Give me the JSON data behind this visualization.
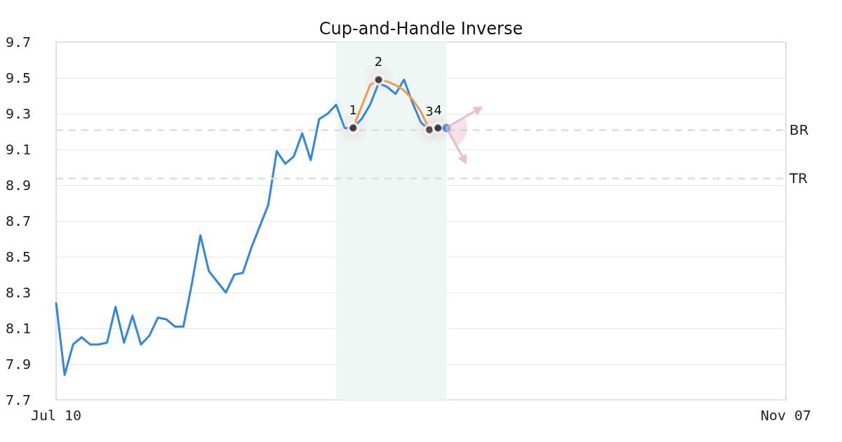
{
  "chart_data": {
    "type": "line",
    "title": "Cup-and-Handle Inverse",
    "categories": [
      "Jul 10",
      null,
      null,
      null,
      null,
      null,
      null,
      null,
      null,
      null,
      null,
      null,
      null,
      null,
      null,
      null,
      null,
      null,
      null,
      null,
      null,
      null,
      null,
      null,
      null,
      null,
      null,
      null,
      null,
      null,
      null,
      null,
      null,
      null,
      null,
      null,
      null,
      null,
      null,
      null,
      null,
      null,
      null,
      null,
      null,
      null,
      null,
      null,
      null,
      null,
      null,
      null,
      null,
      null,
      null,
      null,
      null,
      null,
      null,
      null,
      null,
      null,
      null,
      null,
      null,
      null,
      null,
      null,
      null,
      null,
      null,
      null,
      null,
      null,
      null,
      null,
      null,
      null,
      null,
      null,
      null,
      null,
      null,
      null,
      null,
      null,
      "Nov 07"
    ],
    "ylim": [
      7.7,
      9.7
    ],
    "yticks": [
      7.7,
      7.9,
      8.1,
      8.3,
      8.5,
      8.7,
      8.9,
      9.1,
      9.3,
      9.5,
      9.7
    ],
    "grid": "y",
    "marker": "none",
    "line_style": "solid",
    "series": [
      {
        "color": "#2b87e8",
        "values": [
          8.24,
          7.84,
          8.01,
          8.05,
          8.01,
          8.01,
          8.02,
          8.22,
          8.02,
          8.17,
          8.01,
          8.06,
          8.16,
          8.15,
          8.11,
          8.11,
          8.35,
          8.62,
          8.42,
          8.36,
          8.3,
          8.4,
          8.41,
          8.55,
          8.67,
          8.79,
          9.09,
          9.02,
          9.06,
          9.19,
          9.04,
          9.27,
          9.3,
          9.35,
          9.22,
          9.22,
          9.27,
          9.35,
          9.47,
          9.45,
          9.41,
          9.49,
          9.36,
          9.25,
          9.21,
          9.22,
          9.22,
          null,
          null,
          null,
          null,
          null,
          null,
          null,
          null,
          null,
          null,
          null,
          null,
          null,
          null,
          null,
          null,
          null,
          null,
          null,
          null,
          null,
          null,
          null,
          null,
          null,
          null,
          null,
          null,
          null,
          null,
          null,
          null,
          null,
          null,
          null,
          null,
          null,
          null,
          null,
          null
        ]
      },
      {
        "color": "#f59a45",
        "values": [
          null,
          null,
          null,
          null,
          null,
          null,
          null,
          null,
          null,
          null,
          null,
          null,
          null,
          null,
          null,
          null,
          null,
          null,
          null,
          null,
          null,
          null,
          null,
          null,
          null,
          null,
          null,
          null,
          null,
          null,
          null,
          null,
          null,
          null,
          null,
          9.22,
          9.34,
          9.46,
          9.49,
          9.48,
          9.46,
          9.43,
          9.38,
          9.31,
          9.21,
          null,
          null,
          null,
          null,
          null,
          null,
          null,
          null,
          null,
          null,
          null,
          null,
          null,
          null,
          null,
          null,
          null,
          null,
          null,
          null,
          null,
          null,
          null,
          null,
          null,
          null,
          null,
          null,
          null,
          null,
          null,
          null,
          null,
          null,
          null,
          null,
          null,
          null,
          null,
          null,
          null,
          null
        ]
      },
      {
        "type": "scatter",
        "color": "#000000",
        "marker": "circle",
        "values": [
          null,
          null,
          null,
          null,
          null,
          null,
          null,
          null,
          null,
          null,
          null,
          null,
          null,
          null,
          null,
          null,
          null,
          null,
          null,
          null,
          null,
          null,
          null,
          null,
          null,
          null,
          null,
          null,
          null,
          null,
          null,
          null,
          null,
          null,
          null,
          9.22,
          null,
          null,
          9.49,
          null,
          null,
          null,
          null,
          null,
          9.21,
          9.22,
          null,
          null,
          null,
          null,
          null,
          null,
          null,
          null,
          null,
          null,
          null,
          null,
          null,
          null,
          null,
          null,
          null,
          null,
          null,
          null,
          null,
          null,
          null,
          null,
          null,
          null,
          null,
          null,
          null,
          null,
          null,
          null,
          null,
          null,
          null,
          null,
          null,
          null,
          null,
          null,
          null
        ]
      },
      {
        "type": "scatter",
        "color": "#2b87e8",
        "marker": "circle",
        "values": [
          null,
          null,
          null,
          null,
          null,
          null,
          null,
          null,
          null,
          null,
          null,
          null,
          null,
          null,
          null,
          null,
          null,
          null,
          null,
          null,
          null,
          null,
          null,
          null,
          null,
          null,
          null,
          null,
          null,
          null,
          null,
          null,
          null,
          null,
          null,
          null,
          null,
          null,
          null,
          null,
          null,
          null,
          null,
          null,
          null,
          null,
          9.22,
          null,
          null,
          null,
          null,
          null,
          null,
          null,
          null,
          null,
          null,
          null,
          null,
          null,
          null,
          null,
          null,
          null,
          null,
          null,
          null,
          null,
          null,
          null,
          null,
          null,
          null,
          null,
          null,
          null,
          null,
          null,
          null,
          null,
          null,
          null,
          null,
          null,
          null,
          null,
          null
        ]
      }
    ],
    "annotations": [
      "1",
      "2",
      "3",
      "4"
    ],
    "ref_lines": [
      {
        "axis": "y",
        "value": 9.21,
        "label": "BR",
        "color": "#dddddd",
        "line_style": "dashed"
      },
      {
        "axis": "y",
        "value": 8.94,
        "label": "TR",
        "color": "#dddddd",
        "line_style": "dashed"
      }
    ]
  }
}
